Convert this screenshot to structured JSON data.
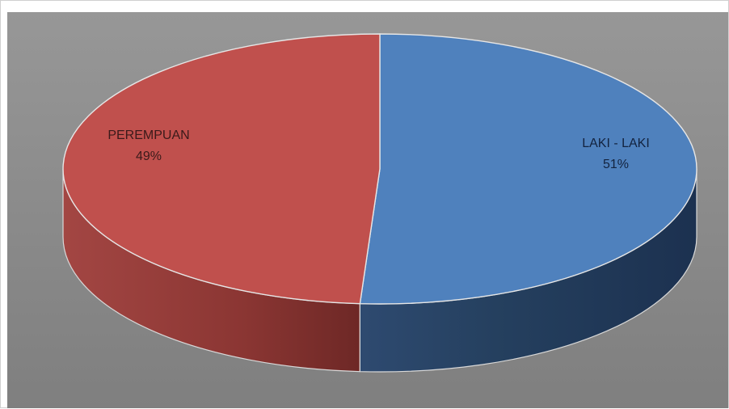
{
  "chart_data": {
    "type": "pie",
    "style": "3d",
    "title": "",
    "slices": [
      {
        "label": "LAKI - LAKI",
        "value": 51,
        "percent_label": "51%",
        "color": "#4f81bd",
        "side_color": "#2b4466"
      },
      {
        "label": "PEREMPUAN",
        "value": 49,
        "percent_label": "49%",
        "color": "#c0504d",
        "side_color": "#8a3432"
      }
    ],
    "legend": "none",
    "background_color": "#8c8c8c"
  }
}
